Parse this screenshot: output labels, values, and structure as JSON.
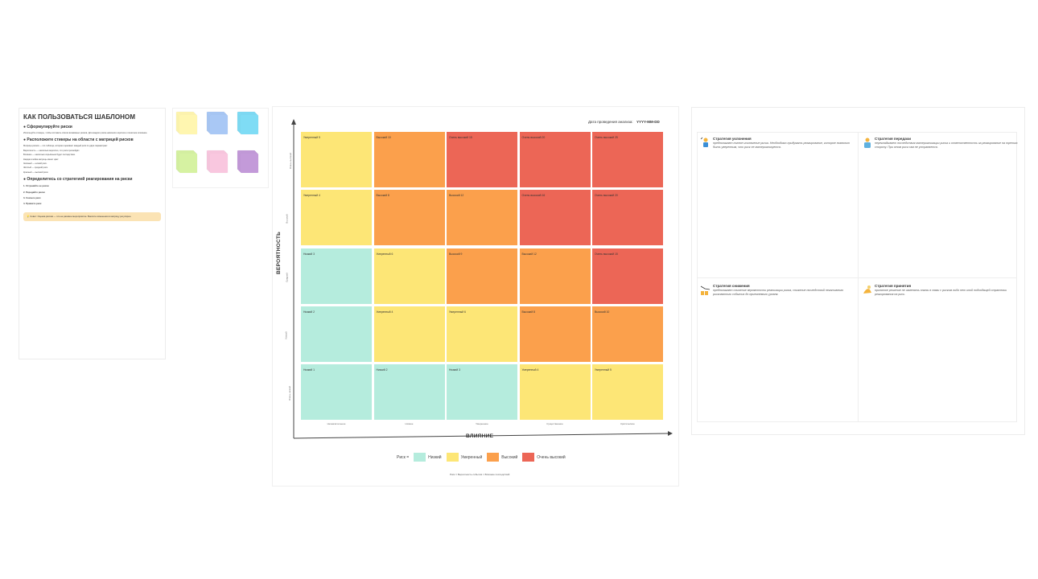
{
  "frames": {
    "instructions": "",
    "stickies": "",
    "matrix": "",
    "strategies": ""
  },
  "instructions": {
    "title": "КАК ПОЛЬЗОВАТЬСЯ ШАБЛОНОМ",
    "s1_title": "Сформулируйте риски",
    "s1_text": "Используйте стикеры, чтобы составить список возможных рисков. Для каждого риска напишите короткое и понятное описание.",
    "s2_title": "Расположите стикеры на области с матрицей рисков",
    "s2_text": "Матрица рисков — это таблица, которая оценивает каждый риск по двум параметрам:",
    "s2_prob": "Вероятность — насколько вероятно, что риск произойдёт.",
    "s2_impact": "Влияние — насколько серьёзным будет последствие.",
    "s2_legend": "Каждая ячейка матрицы имеет цвет:",
    "s2_green": "Зелёный — низкий риск.",
    "s2_yellow": "Жёлтый — средний риск.",
    "s2_red": "Красный — высокий риск.",
    "s3_title": "Определитесь со стратегией реагирования на риски",
    "step1": "1. Устраняйте ее риски",
    "step2": "2. Передайте риски",
    "step3": "3. Снизьте риск",
    "step4": "4. Примите риск",
    "tip": "Совет: Оценка рисков — это не разовое мероприятие. Вносите изменения в матрицу регулярно."
  },
  "stickies": [
    {
      "color": "#fff6b0"
    },
    {
      "color": "#a9c8f5"
    },
    {
      "color": "#7fdcf5"
    },
    {
      "color": "#d6f2a2"
    },
    {
      "color": "#f9c7df"
    },
    {
      "color": "#c39ad9"
    }
  ],
  "matrix": {
    "date_label": "Дата проведения анализа:",
    "date_value": "YYYY-MM-DD",
    "y_title": "ВЕРОЯТНОСТЬ",
    "x_title": "ВЛИЯНИЕ",
    "y_ticks": [
      "Очень высокий",
      "Высокий",
      "Средний",
      "Низкий",
      "Очень низкий"
    ],
    "x_ticks": [
      "Незначительное",
      "Низкое",
      "Умеренное",
      "Существенное",
      "Критическое"
    ],
    "cells": [
      [
        {
          "label": "Умеренный 5",
          "level": "moderate"
        },
        {
          "label": "Высокий 10",
          "level": "high"
        },
        {
          "label": "Очень высокий 15",
          "level": "very_high"
        },
        {
          "label": "Очень высокий 20",
          "level": "very_high"
        },
        {
          "label": "Очень высокий 25",
          "level": "very_high"
        }
      ],
      [
        {
          "label": "Умеренный 4",
          "level": "moderate"
        },
        {
          "label": "Высокий 8",
          "level": "high"
        },
        {
          "label": "Высокий 12",
          "level": "high"
        },
        {
          "label": "Очень высокий 16",
          "level": "very_high"
        },
        {
          "label": "Очень высокий 20",
          "level": "very_high"
        }
      ],
      [
        {
          "label": "Низкий 3",
          "level": "low"
        },
        {
          "label": "Умеренный 6",
          "level": "moderate"
        },
        {
          "label": "Высокий 9",
          "level": "high"
        },
        {
          "label": "Высокий 12",
          "level": "high"
        },
        {
          "label": "Очень высокий 15",
          "level": "very_high"
        }
      ],
      [
        {
          "label": "Низкий 2",
          "level": "low"
        },
        {
          "label": "Умеренный 4",
          "level": "moderate"
        },
        {
          "label": "Умеренный 6",
          "level": "moderate"
        },
        {
          "label": "Высокий 8",
          "level": "high"
        },
        {
          "label": "Высокий 10",
          "level": "high"
        }
      ],
      [
        {
          "label": "Низкий 1",
          "level": "low"
        },
        {
          "label": "Низкий 2",
          "level": "low"
        },
        {
          "label": "Низкий 3",
          "level": "low"
        },
        {
          "label": "Умеренный 4",
          "level": "moderate"
        },
        {
          "label": "Умеренный 5",
          "level": "moderate"
        }
      ]
    ],
    "colors": {
      "low": "#b5ecdd",
      "moderate": "#fde676",
      "high": "#fba04c",
      "very_high": "#ec6656"
    },
    "legend_prefix": "Риск =",
    "legend": [
      {
        "label": "Низкий",
        "level": "low"
      },
      {
        "label": "Умеренный",
        "level": "moderate"
      },
      {
        "label": "Высокий",
        "level": "high"
      },
      {
        "label": "Очень высокий",
        "level": "very_high"
      }
    ],
    "formula": "Риск = Вероятность события × Влияние последствий"
  },
  "strategies": [
    {
      "title": "Стратегия уклонения",
      "icon": "person-avoid-icon",
      "text": "предполагает полное исключение риска. Необходимо придумать реагирование, которое позволит быть уверенным, что риск не материализуется."
    },
    {
      "title": "Стратегия передачи",
      "icon": "person-transfer-icon",
      "text": "перекладывает последствия материализации риска и ответственность за реагирование на третью сторону. При этом риск сам не устраняется."
    },
    {
      "title": "Стратегия снижения",
      "icon": "chart-down-icon",
      "text": "предполагает снижение вероятности реализации риска, снижение последствий негативного рискованного события до приемлемого уровня."
    },
    {
      "title": "Стратегия принятия",
      "icon": "hand-accept-icon",
      "text": "принятое решение не изменять планы в связи с риском либо нет иной подходящей стратегии реагирования на риск."
    }
  ]
}
